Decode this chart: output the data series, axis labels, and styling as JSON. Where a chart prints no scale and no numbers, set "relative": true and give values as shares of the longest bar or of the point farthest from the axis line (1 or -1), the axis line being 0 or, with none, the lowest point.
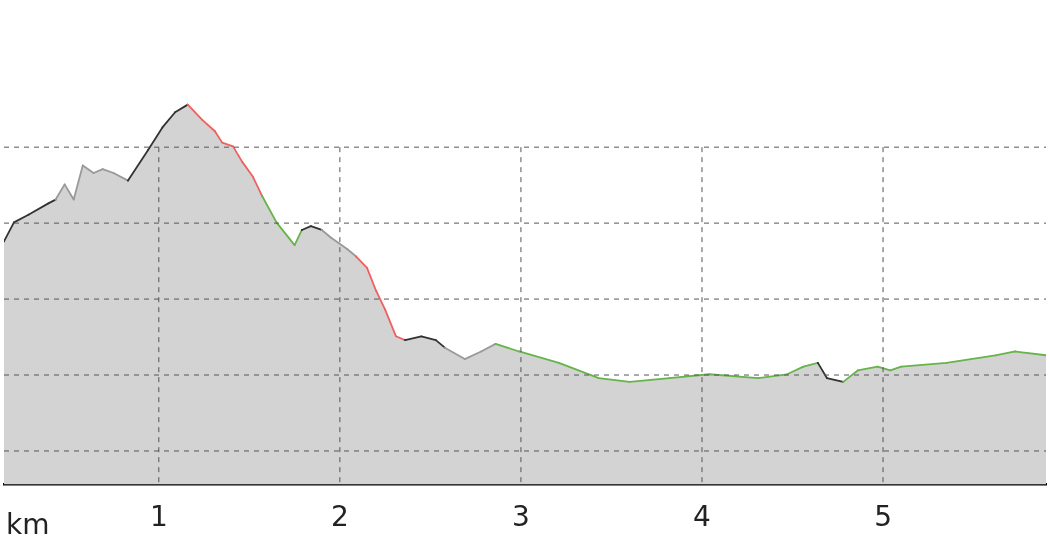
{
  "chart_data": {
    "type": "area",
    "relative": true,
    "xlabel": "km",
    "xlim": [
      0.145,
      5.9
    ],
    "xticks": [
      1,
      2,
      3,
      4,
      5
    ],
    "grid": true,
    "legend": false,
    "tick_labels": "x",
    "series": [
      {
        "color": "#d3d3d3",
        "x": [
          0.145,
          0.2,
          0.28,
          0.39,
          0.43,
          0.48,
          0.53,
          0.58,
          0.64,
          0.69,
          0.75,
          0.83,
          0.94,
          1.02,
          1.09,
          1.16,
          1.24,
          1.31,
          1.35,
          1.41,
          1.46,
          1.52,
          1.57,
          1.65,
          1.75,
          1.79,
          1.84,
          1.9,
          1.95,
          2.04,
          2.09,
          2.15,
          2.2,
          2.25,
          2.31,
          2.36,
          2.45,
          2.53,
          2.58,
          2.69,
          2.78,
          2.86,
          2.99,
          3.21,
          3.43,
          3.6,
          3.82,
          4.04,
          4.31,
          4.47,
          4.56,
          4.64,
          4.69,
          4.78,
          4.86,
          4.97,
          5.04,
          5.1,
          5.35,
          5.62,
          5.73,
          5.9
        ],
        "values": [
          0.64,
          0.69,
          0.71,
          0.74,
          0.75,
          0.79,
          0.75,
          0.84,
          0.82,
          0.83,
          0.82,
          0.8,
          0.88,
          0.94,
          0.98,
          1,
          0.96,
          0.93,
          0.9,
          0.89,
          0.85,
          0.81,
          0.76,
          0.69,
          0.63,
          0.67,
          0.68,
          0.67,
          0.65,
          0.62,
          0.6,
          0.57,
          0.51,
          0.46,
          0.39,
          0.38,
          0.39,
          0.38,
          0.36,
          0.33,
          0.35,
          0.37,
          0.35,
          0.32,
          0.28,
          0.27,
          0.28,
          0.29,
          0.28,
          0.29,
          0.31,
          0.32,
          0.28,
          0.27,
          0.3,
          0.31,
          0.3,
          0.31,
          0.32,
          0.34,
          0.35,
          0.34
        ],
        "colors": [
          "#333333",
          "#333333",
          "#333333",
          "#333333",
          "#999999",
          "#999999",
          "#999999",
          "#999999",
          "#999999",
          "#999999",
          "#999999",
          "#333333",
          "#333333",
          "#333333",
          "#333333",
          "#f06060",
          "#f06060",
          "#f06060",
          "#f06060",
          "#f06060",
          "#f06060",
          "#f06060",
          "#66b44a",
          "#66b44a",
          "#66b44a",
          "#333333",
          "#333333",
          "#999999",
          "#999999",
          "#999999",
          "#f06060",
          "#f06060",
          "#f06060",
          "#f06060",
          "#f06060",
          "#333333",
          "#333333",
          "#333333",
          "#999999",
          "#999999",
          "#999999",
          "#66b44a",
          "#66b44a",
          "#66b44a",
          "#66b44a",
          "#66b44a",
          "#66b44a",
          "#66b44a",
          "#66b44a",
          "#66b44a",
          "#66b44a",
          "#333333",
          "#333333",
          "#66b44a",
          "#66b44a",
          "#66b44a",
          "#66b44a",
          "#66b44a",
          "#66b44a",
          "#66b44a",
          "#66b44a",
          "#66b44a"
        ]
      }
    ]
  }
}
